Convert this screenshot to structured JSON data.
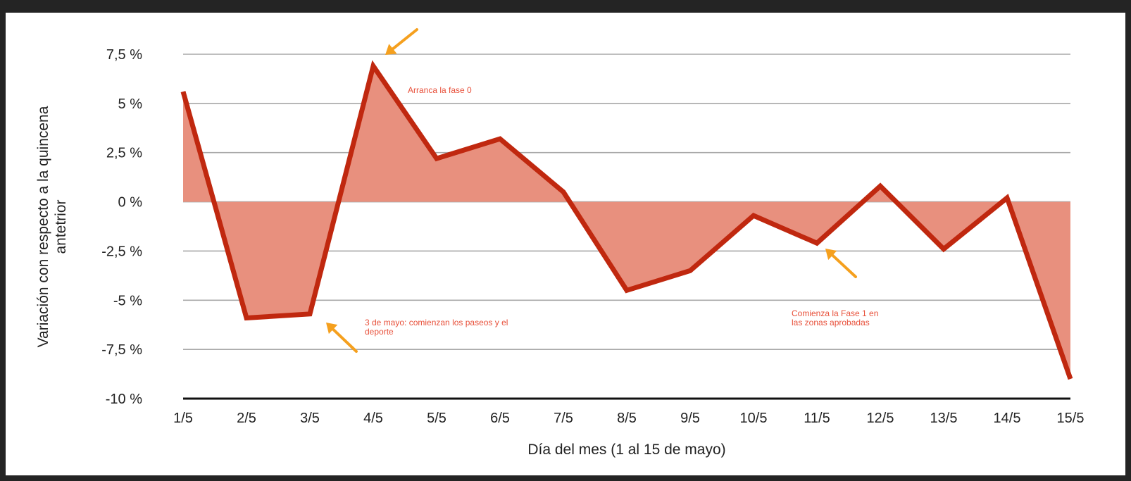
{
  "chart_data": {
    "type": "area",
    "x": [
      "1/5",
      "2/5",
      "3/5",
      "4/5",
      "5/5",
      "6/5",
      "7/5",
      "8/5",
      "9/5",
      "10/5",
      "11/5",
      "12/5",
      "13/5",
      "14/5",
      "15/5"
    ],
    "series": [
      {
        "values": [
          5.6,
          -5.9,
          -5.7,
          6.9,
          2.2,
          3.2,
          0.5,
          -4.5,
          -3.5,
          -0.7,
          -2.1,
          0.8,
          -2.4,
          0.2,
          -9.0
        ]
      }
    ],
    "xlabel": "Día del mes (1 al 15 de mayo)",
    "ylabel_lines": [
      "Variación con respecto a la quincena",
      "antetrior"
    ],
    "ylim": [
      -10,
      7.5
    ],
    "yticks": [
      7.5,
      5,
      2.5,
      0,
      -2.5,
      -5,
      -7.5,
      -10
    ],
    "ytick_labels": [
      "7,5 %",
      "5 %",
      "2,5 %",
      "0 %",
      "-2,5 %",
      "-5 %",
      "-7,5 %",
      "-10 %"
    ],
    "grid": true,
    "colors": {
      "line": "#c0280f",
      "fill": "#e8907e",
      "annotation": "#e8503a",
      "arrow": "#f5a01e"
    },
    "annotations": [
      {
        "lines": [
          "Arranca la fase 0"
        ],
        "x": "4/5",
        "y": 6.9,
        "arrow_icon": "arrow-down-left"
      },
      {
        "lines": [
          "3 de mayo: comienzan los paseos y el",
          "deporte"
        ],
        "x": "3/5",
        "y": -5.7,
        "arrow_icon": "arrow-up-left"
      },
      {
        "lines": [
          "Comienza la Fase 1 en",
          "las zonas aprobadas"
        ],
        "x": "11/5",
        "y": -2.1,
        "arrow_icon": "arrow-up-left"
      }
    ]
  }
}
